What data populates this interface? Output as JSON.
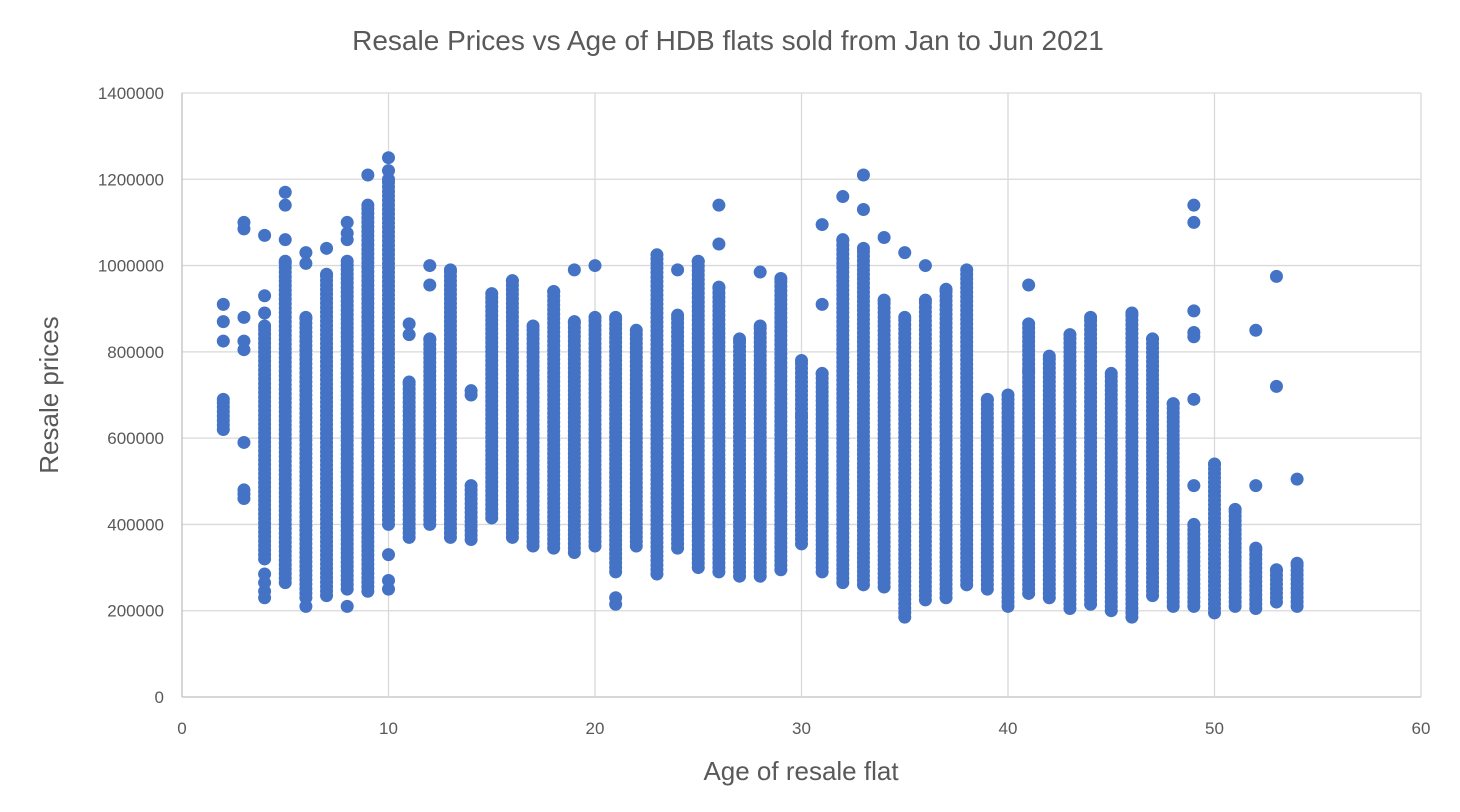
{
  "chart_data": {
    "type": "scatter",
    "title": "Resale Prices vs Age of HDB flats sold from Jan to Jun 2021",
    "xlabel": "Age of resale flat",
    "ylabel": "Resale prices",
    "xlim": [
      0,
      60
    ],
    "ylim": [
      0,
      1400000
    ],
    "x_ticks": [
      "0",
      "10",
      "20",
      "30",
      "40",
      "50",
      "60"
    ],
    "y_ticks": [
      "0",
      "200000",
      "400000",
      "600000",
      "800000",
      "1000000",
      "1200000",
      "1400000"
    ],
    "grid": true,
    "legend": "none",
    "color": "#4472c4",
    "series": [
      {
        "description_of_columns": "each entry: [age, min_price_of_dense_band, max_price_of_dense_band, [outlier prices]]",
        "columns": [
          [
            2,
            620000,
            690000,
            [
              825000,
              870000,
              910000
            ]
          ],
          [
            3,
            460000,
            480000,
            [
              590000,
              805000,
              825000,
              880000,
              1085000,
              1100000
            ]
          ],
          [
            4,
            320000,
            860000,
            [
              230000,
              245000,
              265000,
              285000,
              890000,
              930000,
              1070000
            ]
          ],
          [
            5,
            265000,
            1010000,
            [
              1060000,
              1140000,
              1170000
            ]
          ],
          [
            6,
            230000,
            880000,
            [
              210000,
              1005000,
              1030000
            ]
          ],
          [
            7,
            235000,
            980000,
            [
              1040000
            ]
          ],
          [
            8,
            250000,
            1010000,
            [
              210000,
              1060000,
              1075000,
              1100000
            ]
          ],
          [
            9,
            245000,
            1140000,
            [
              1210000
            ]
          ],
          [
            10,
            400000,
            1200000,
            [
              250000,
              270000,
              330000,
              1220000,
              1250000
            ]
          ],
          [
            11,
            370000,
            730000,
            [
              840000,
              865000
            ]
          ],
          [
            12,
            400000,
            830000,
            [
              955000,
              1000000
            ]
          ],
          [
            13,
            370000,
            990000,
            []
          ],
          [
            14,
            365000,
            490000,
            [
              700000,
              710000
            ]
          ],
          [
            15,
            415000,
            935000,
            []
          ],
          [
            16,
            370000,
            965000,
            []
          ],
          [
            17,
            350000,
            860000,
            []
          ],
          [
            18,
            345000,
            940000,
            []
          ],
          [
            19,
            335000,
            870000,
            [
              990000
            ]
          ],
          [
            20,
            350000,
            880000,
            [
              1000000
            ]
          ],
          [
            21,
            290000,
            880000,
            [
              215000,
              230000
            ]
          ],
          [
            22,
            350000,
            850000,
            []
          ],
          [
            23,
            285000,
            1025000,
            []
          ],
          [
            24,
            345000,
            885000,
            [
              990000
            ]
          ],
          [
            25,
            300000,
            1010000,
            []
          ],
          [
            26,
            290000,
            950000,
            [
              1050000,
              1140000
            ]
          ],
          [
            27,
            280000,
            830000,
            []
          ],
          [
            28,
            280000,
            860000,
            [
              985000
            ]
          ],
          [
            29,
            295000,
            970000,
            []
          ],
          [
            30,
            355000,
            780000,
            [
              650000
            ]
          ],
          [
            31,
            290000,
            750000,
            [
              910000,
              1095000
            ]
          ],
          [
            32,
            265000,
            1060000,
            [
              1160000
            ]
          ],
          [
            33,
            260000,
            1040000,
            [
              1130000,
              1210000
            ]
          ],
          [
            34,
            255000,
            920000,
            [
              1065000
            ]
          ],
          [
            35,
            185000,
            880000,
            [
              1030000
            ]
          ],
          [
            36,
            225000,
            920000,
            [
              1000000
            ]
          ],
          [
            37,
            230000,
            945000,
            []
          ],
          [
            38,
            260000,
            990000,
            []
          ],
          [
            39,
            250000,
            690000,
            []
          ],
          [
            40,
            210000,
            700000,
            []
          ],
          [
            41,
            240000,
            865000,
            [
              755000,
              955000
            ]
          ],
          [
            42,
            230000,
            790000,
            []
          ],
          [
            43,
            205000,
            840000,
            []
          ],
          [
            44,
            215000,
            880000,
            []
          ],
          [
            45,
            200000,
            750000,
            []
          ],
          [
            46,
            185000,
            890000,
            []
          ],
          [
            47,
            235000,
            830000,
            []
          ],
          [
            48,
            210000,
            680000,
            []
          ],
          [
            49,
            210000,
            400000,
            [
              490000,
              690000,
              835000,
              845000,
              895000,
              1100000,
              1140000
            ]
          ],
          [
            50,
            195000,
            540000,
            []
          ],
          [
            51,
            210000,
            435000,
            []
          ],
          [
            52,
            205000,
            345000,
            [
              490000,
              850000
            ]
          ],
          [
            53,
            220000,
            295000,
            [
              720000,
              975000
            ]
          ],
          [
            54,
            210000,
            310000,
            [
              505000
            ]
          ]
        ]
      }
    ]
  }
}
